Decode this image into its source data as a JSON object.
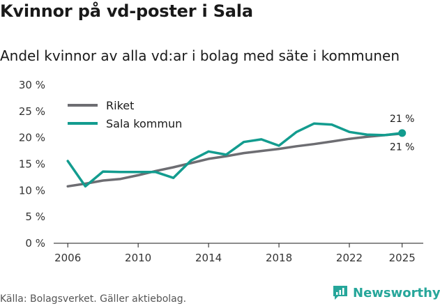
{
  "title": "Kvinnor på vd-poster i Sala",
  "subtitle": "Andel kvinnor av alla vd:ar i bolag med säte i kommunen",
  "source": "Källa: Bolagsverket. Gäller aktiebolag.",
  "brand": "Newsworthy",
  "chart_data": {
    "type": "line",
    "title": "Kvinnor på vd-poster i Sala",
    "subtitle": "Andel kvinnor av alla vd:ar i bolag med säte i kommunen",
    "xlabel": "",
    "ylabel": "",
    "x": [
      2006,
      2007,
      2008,
      2009,
      2010,
      2011,
      2012,
      2013,
      2014,
      2015,
      2016,
      2017,
      2018,
      2019,
      2020,
      2021,
      2022,
      2023,
      2024,
      2025
    ],
    "xlim": [
      2005.2,
      2026.2
    ],
    "ylim": [
      0,
      30
    ],
    "x_ticks": [
      2006,
      2010,
      2014,
      2018,
      2022,
      2025
    ],
    "x_tick_labels": [
      "2006",
      "2010",
      "2014",
      "2018",
      "2022",
      "2025"
    ],
    "y_ticks": [
      0,
      5,
      10,
      15,
      20,
      25,
      30
    ],
    "y_tick_labels": [
      "0 %",
      "5 %",
      "10 %",
      "15 %",
      "20 %",
      "25 %",
      "30 %"
    ],
    "grid": false,
    "legend_position": "top-left",
    "series": [
      {
        "name": "Riket",
        "color": "#6d6d72",
        "values": [
          10.8,
          11.3,
          11.9,
          12.2,
          12.9,
          13.7,
          14.4,
          15.2,
          16.0,
          16.5,
          17.1,
          17.5,
          17.9,
          18.4,
          18.8,
          19.3,
          19.8,
          20.2,
          20.5,
          20.8
        ]
      },
      {
        "name": "Sala kommun",
        "color": "#139c8f",
        "values": [
          15.6,
          10.8,
          13.6,
          13.5,
          13.5,
          13.5,
          12.4,
          15.7,
          17.4,
          16.8,
          19.2,
          19.7,
          18.5,
          21.1,
          22.7,
          22.5,
          21.1,
          20.6,
          20.5,
          20.9
        ]
      }
    ],
    "annotations": [
      {
        "series": "Sala kommun",
        "x": 2025,
        "text": "21 %",
        "placement": "above"
      },
      {
        "series": "Riket",
        "x": 2025,
        "text": "21 %",
        "placement": "below"
      }
    ]
  }
}
